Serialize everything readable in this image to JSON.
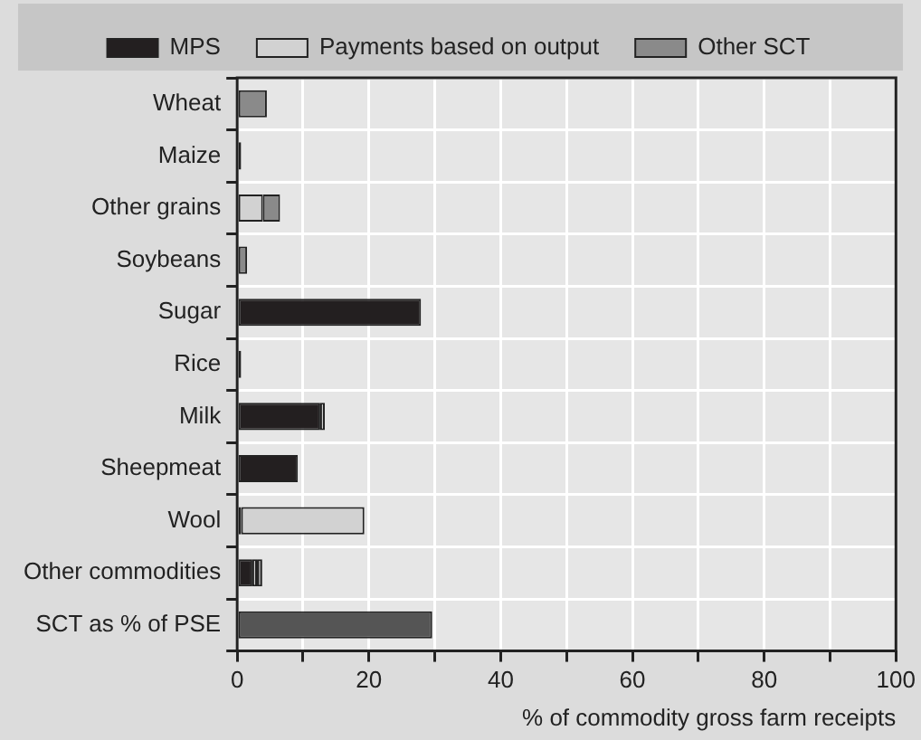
{
  "chart_data": {
    "type": "bar",
    "orientation": "horizontal",
    "stacked": true,
    "xlabel": "% of commodity gross farm receipts",
    "categories": [
      "Wheat",
      "Maize",
      "Other grains",
      "Soybeans",
      "Sugar",
      "Rice",
      "Milk",
      "Sheepmeat",
      "Wool",
      "Other commodities",
      "SCT as % of PSE"
    ],
    "series": [
      {
        "name": "MPS",
        "color": "#231f20",
        "values": [
          null,
          0.6,
          null,
          null,
          27.9,
          0.6,
          12.6,
          9.2,
          0.6,
          2.3,
          null
        ]
      },
      {
        "name": "Payments based on output",
        "color": "#d2d2d2",
        "values": [
          null,
          null,
          3.9,
          null,
          null,
          null,
          0.7,
          null,
          18.7,
          0.7,
          null
        ]
      },
      {
        "name": "Other SCT",
        "color": "#8a8a8a",
        "values": [
          4.5,
          null,
          2.6,
          1.5,
          null,
          null,
          null,
          null,
          null,
          0.8,
          null
        ]
      },
      {
        "color": "#555555",
        "values": [
          null,
          null,
          null,
          null,
          null,
          null,
          null,
          null,
          null,
          null,
          29.6
        ]
      }
    ],
    "xlim": [
      0,
      100
    ],
    "xticks": [
      0,
      {
        "value": 10,
        "label": null
      },
      20,
      {
        "value": 30,
        "label": null
      },
      40,
      {
        "value": 50,
        "label": null
      },
      60,
      {
        "value": 70,
        "label": null
      },
      80,
      {
        "value": 90,
        "label": null
      },
      100
    ],
    "grid": true,
    "legend": "top"
  }
}
